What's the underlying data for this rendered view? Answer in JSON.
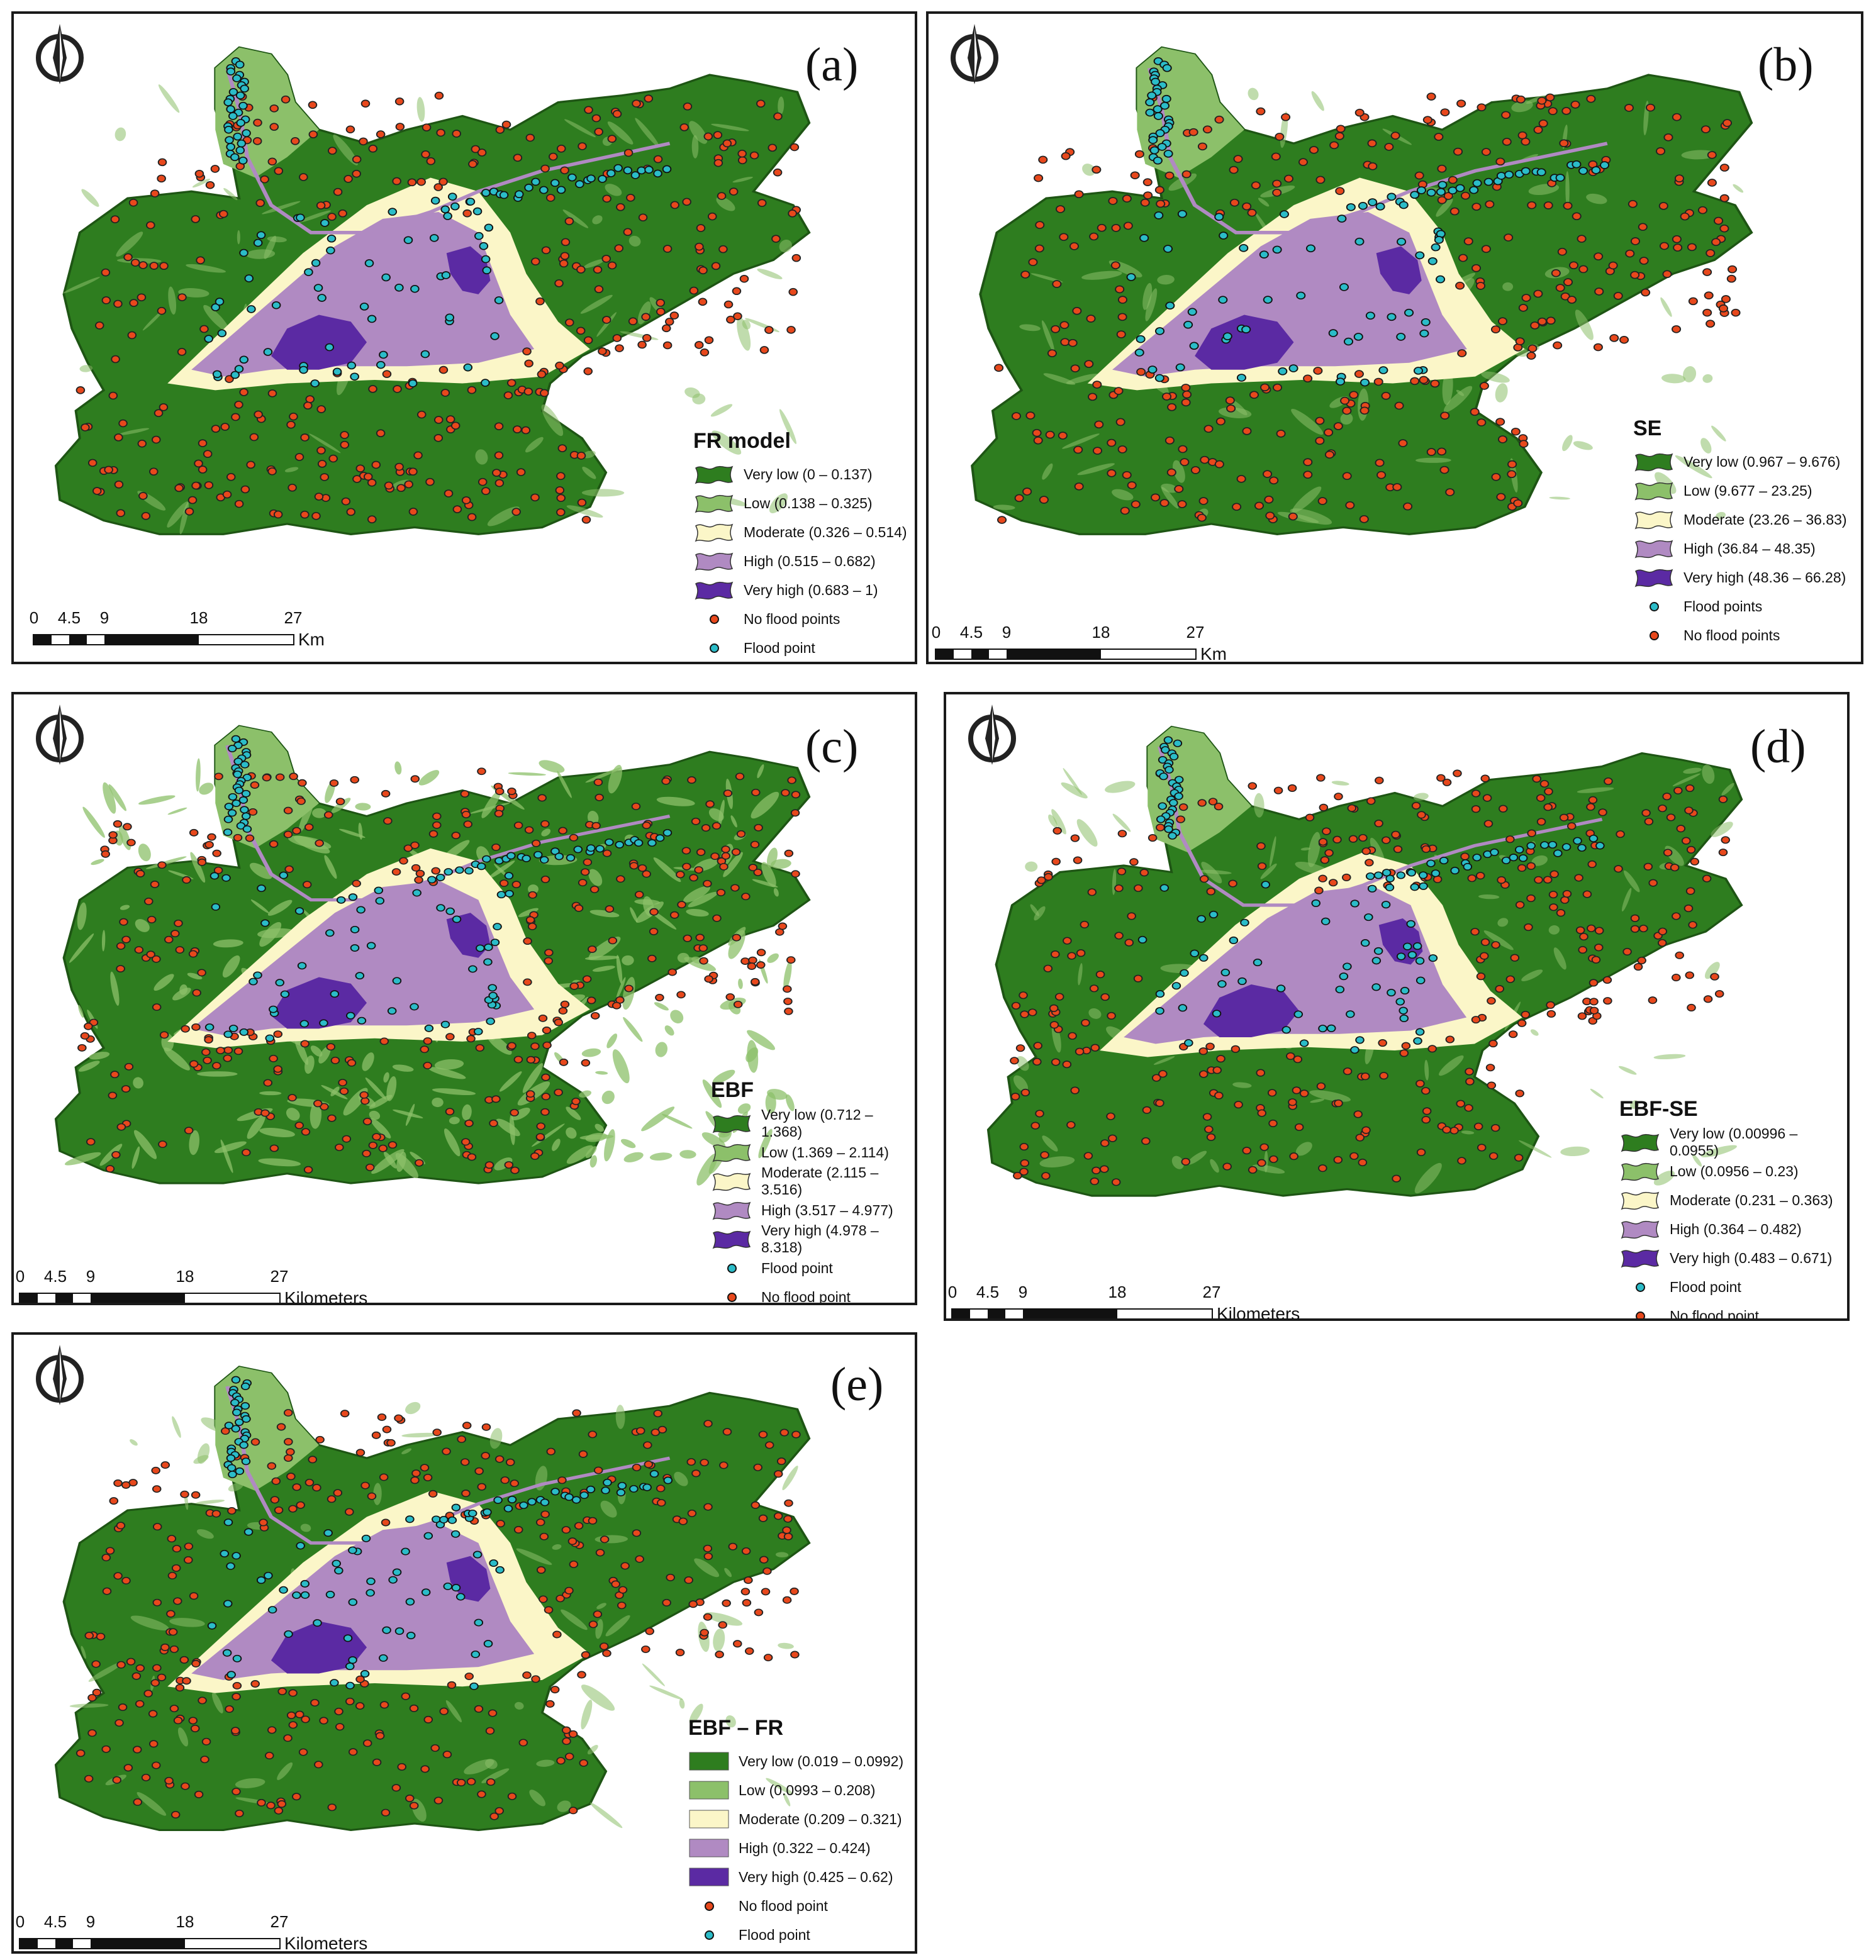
{
  "colors": {
    "very_low": "#2e7d1f",
    "low": "#8cc06a",
    "moderate": "#fbf6c8",
    "high": "#b08ac2",
    "very_high": "#5b2aa3",
    "flood_point": "#2bbcc8",
    "no_flood_point": "#e8481c"
  },
  "panels": [
    {
      "id": "a",
      "label": "(a)",
      "legend": {
        "title": "FR model",
        "classes": [
          {
            "key": "very_low",
            "label": "Very low (0 – 0.137)"
          },
          {
            "key": "low",
            "label": "Low (0.138 – 0.325)"
          },
          {
            "key": "moderate",
            "label": "Moderate (0.326 – 0.514)"
          },
          {
            "key": "high",
            "label": "High (0.515 – 0.682)"
          },
          {
            "key": "very_high",
            "label": "Very high (0.683 – 1)"
          }
        ],
        "points": [
          {
            "key": "no_flood_point",
            "label": "No flood points"
          },
          {
            "key": "flood_point",
            "label": "Flood point"
          }
        ]
      },
      "scale": {
        "ticks": [
          "0",
          "4.5",
          "9",
          "18",
          "27"
        ],
        "unit": "Km"
      }
    },
    {
      "id": "b",
      "label": "(b)",
      "legend": {
        "title": "SE",
        "classes": [
          {
            "key": "very_low",
            "label": "Very low (0.967 – 9.676)"
          },
          {
            "key": "low",
            "label": "Low (9.677 – 23.25)"
          },
          {
            "key": "moderate",
            "label": "Moderate (23.26 – 36.83)"
          },
          {
            "key": "high",
            "label": "High (36.84 – 48.35)"
          },
          {
            "key": "very_high",
            "label": "Very high (48.36 – 66.28)"
          }
        ],
        "points": [
          {
            "key": "flood_point",
            "label": "Flood points"
          },
          {
            "key": "no_flood_point",
            "label": "No flood points"
          }
        ]
      },
      "scale": {
        "ticks": [
          "0",
          "4.5",
          "9",
          "18",
          "27"
        ],
        "unit": "Km"
      }
    },
    {
      "id": "c",
      "label": "(c)",
      "legend": {
        "title": "EBF",
        "classes": [
          {
            "key": "very_low",
            "label": "Very low (0.712 – 1.368)"
          },
          {
            "key": "low",
            "label": "Low (1.369 – 2.114)"
          },
          {
            "key": "moderate",
            "label": "Moderate (2.115 – 3.516)"
          },
          {
            "key": "high",
            "label": "High (3.517 – 4.977)"
          },
          {
            "key": "very_high",
            "label": "Very high (4.978 – 8.318)"
          }
        ],
        "points": [
          {
            "key": "flood_point",
            "label": "Flood point"
          },
          {
            "key": "no_flood_point",
            "label": "No flood point"
          }
        ]
      },
      "scale": {
        "ticks": [
          "0",
          "4.5",
          "9",
          "18",
          "27"
        ],
        "unit": "Kilometers"
      }
    },
    {
      "id": "d",
      "label": "(d)",
      "legend": {
        "title": "EBF-SE",
        "classes": [
          {
            "key": "very_low",
            "label": "Very low (0.00996 – 0.0955)"
          },
          {
            "key": "low",
            "label": "Low (0.0956 – 0.23)"
          },
          {
            "key": "moderate",
            "label": "Moderate (0.231 – 0.363)"
          },
          {
            "key": "high",
            "label": "High (0.364 – 0.482)"
          },
          {
            "key": "very_high",
            "label": "Very high (0.483 – 0.671)"
          }
        ],
        "points": [
          {
            "key": "flood_point",
            "label": "Flood point"
          },
          {
            "key": "no_flood_point",
            "label": "No flood point"
          }
        ]
      },
      "scale": {
        "ticks": [
          "0",
          "4.5",
          "9",
          "18",
          "27"
        ],
        "unit": "Kilometers"
      }
    },
    {
      "id": "e",
      "label": "(e)",
      "legend": {
        "title": "EBF – FR",
        "classes": [
          {
            "key": "very_low",
            "label": "Very low (0.019 – 0.0992)"
          },
          {
            "key": "low",
            "label": "Low (0.0993 – 0.208)"
          },
          {
            "key": "moderate",
            "label": "Moderate (0.209 – 0.321)"
          },
          {
            "key": "high",
            "label": "High (0.322 – 0.424)"
          },
          {
            "key": "very_high",
            "label": "Very high (0.425 – 0.62)"
          }
        ],
        "points": [
          {
            "key": "no_flood_point",
            "label": "No flood point"
          },
          {
            "key": "flood_point",
            "label": "Flood point"
          }
        ]
      },
      "scale": {
        "ticks": [
          "0",
          "4.5",
          "9",
          "18",
          "27"
        ],
        "unit": "Kilometers"
      }
    }
  ]
}
